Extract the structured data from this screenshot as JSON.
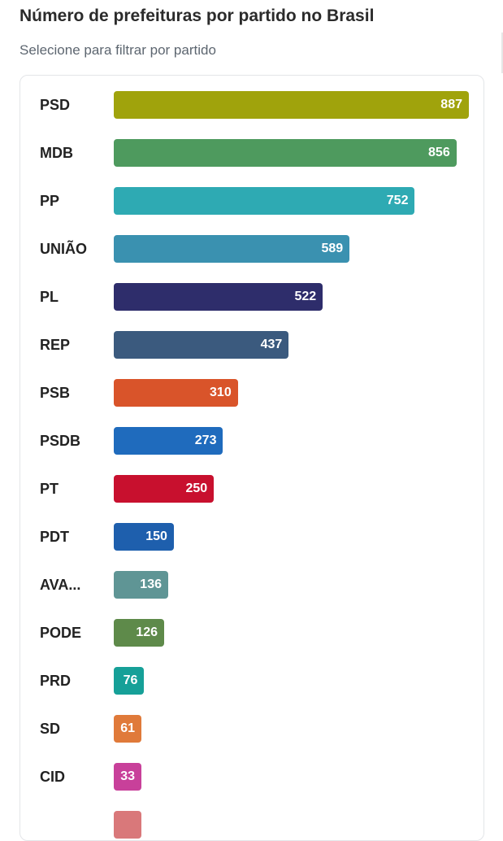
{
  "header": {
    "title": "Número de prefeituras por partido no Brasil",
    "subtitle": "Selecione para filtrar por partido"
  },
  "chart_data": {
    "type": "bar",
    "orientation": "horizontal",
    "title": "Número de prefeituras por partido no Brasil",
    "xlim": [
      0,
      887
    ],
    "grid": false,
    "categories": [
      "PSD",
      "MDB",
      "PP",
      "UNIÃO",
      "PL",
      "REP",
      "PSB",
      "PSDB",
      "PT",
      "PDT",
      "AVA...",
      "PODE",
      "PRD",
      "SD",
      "CID",
      ""
    ],
    "values": [
      887,
      856,
      752,
      589,
      522,
      437,
      310,
      273,
      250,
      150,
      136,
      126,
      76,
      61,
      33,
      null
    ],
    "colors": [
      "#a0a30c",
      "#4e9a5e",
      "#2eaab3",
      "#3a91b0",
      "#2e2d6b",
      "#3b5a7e",
      "#d9542a",
      "#1f6bbd",
      "#c8102e",
      "#1e5fad",
      "#5f9595",
      "#5e8a4a",
      "#16a098",
      "#e07a3a",
      "#c8409a",
      "#d9787a"
    ]
  }
}
